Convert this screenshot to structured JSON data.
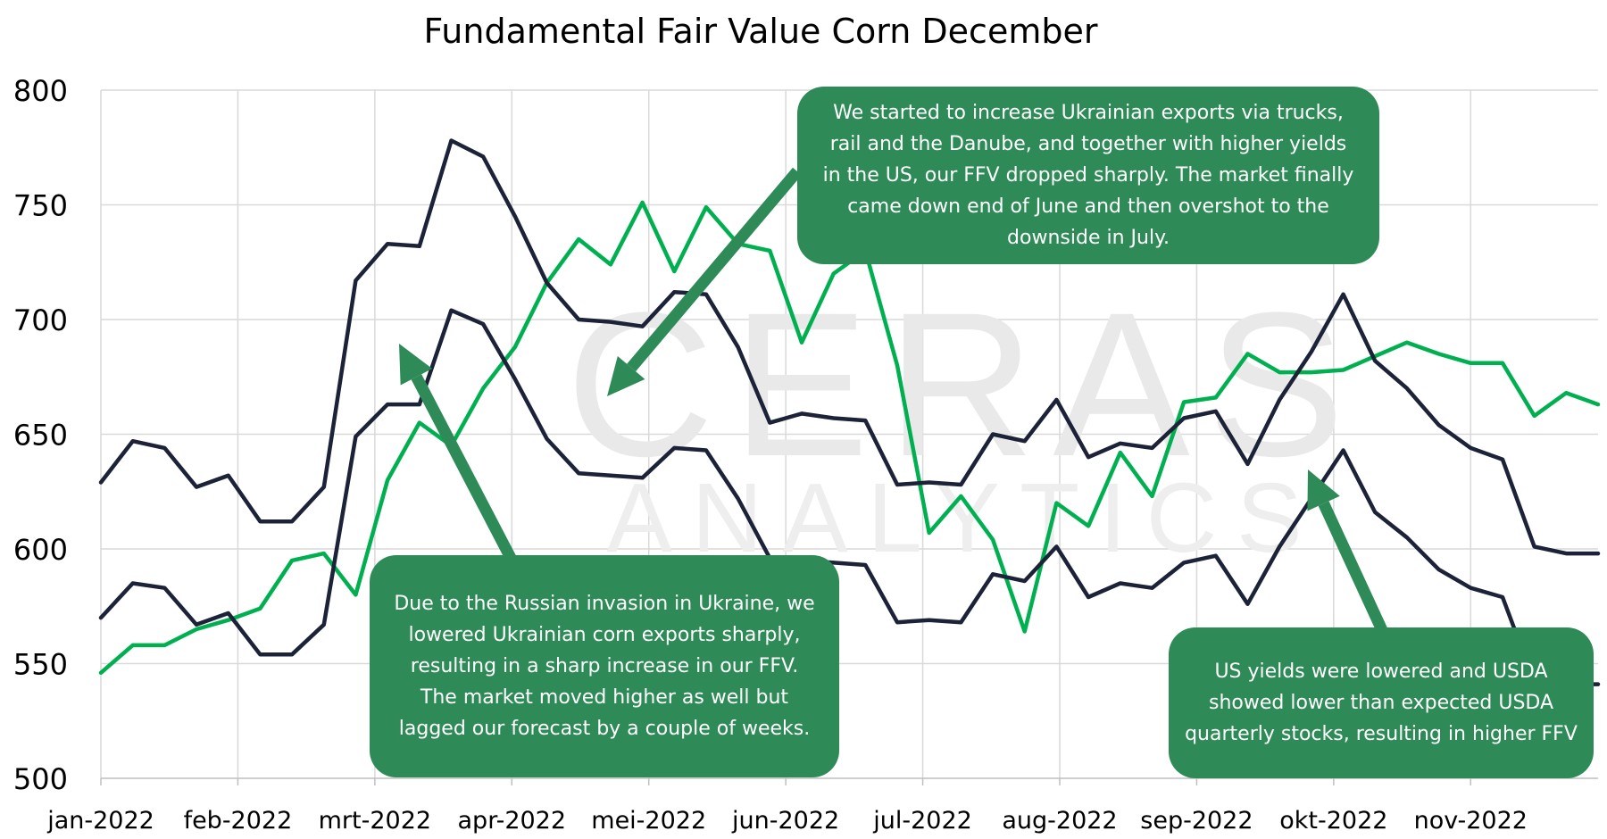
{
  "chart_data": {
    "type": "line",
    "title": "Fundamental Fair Value Corn December",
    "xlabel": "",
    "ylabel": "",
    "ylim": [
      500,
      800
    ],
    "yticks": [
      500,
      550,
      600,
      650,
      700,
      750,
      800
    ],
    "xticks": [
      "jan-2022",
      "feb-2022",
      "mrt-2022",
      "apr-2022",
      "mei-2022",
      "jun-2022",
      "jul-2022",
      "aug-2022",
      "sep-2022",
      "okt-2022",
      "nov-2022"
    ],
    "grid": true,
    "legend": "none",
    "watermark": {
      "line1": "CERAS",
      "line2": "ANALYTICS"
    },
    "series": [
      {
        "color": "#00b050",
        "values": [
          546,
          558,
          558,
          565,
          569,
          574,
          595,
          598,
          580,
          630,
          655,
          645,
          670,
          688,
          716,
          735,
          724,
          751,
          721,
          749,
          733,
          730,
          690,
          720,
          730,
          680,
          607,
          623,
          604,
          564,
          620,
          610,
          642,
          623,
          664,
          666,
          685,
          677,
          677,
          678,
          684,
          690,
          685,
          681,
          681,
          658,
          668,
          663
        ]
      },
      {
        "color": "#1c2237",
        "values": [
          629,
          647,
          644,
          627,
          632,
          612,
          612,
          627,
          717,
          733,
          732,
          778,
          771,
          745,
          716,
          700,
          699,
          697,
          712,
          711,
          688,
          655,
          659,
          657,
          656,
          628,
          629,
          628,
          650,
          647,
          665,
          640,
          646,
          644,
          657,
          660,
          637,
          665,
          686,
          711,
          682,
          670,
          654,
          644,
          639,
          601,
          598,
          598
        ]
      },
      {
        "color": "#1c2237",
        "values": [
          570,
          585,
          583,
          567,
          572,
          554,
          554,
          567,
          649,
          663,
          663,
          704,
          698,
          674,
          648,
          633,
          632,
          631,
          644,
          643,
          622,
          596,
          595,
          594,
          593,
          568,
          569,
          568,
          589,
          586,
          601,
          579,
          585,
          583,
          594,
          597,
          576,
          601,
          622,
          643,
          616,
          605,
          591,
          583,
          579,
          542,
          541,
          541
        ]
      }
    ],
    "annotations": [
      {
        "text": "We started to increase Ukrainian exports via trucks, rail and the Danube, and together with higher yields in the US, our FFV dropped sharply. The market finally came down end of June and then overshot to the downside in July."
      },
      {
        "text": "Due to the Russian invasion in Ukraine, we lowered Ukrainian corn exports sharply, resulting in a sharp increase in our FFV. The market moved higher as well but lagged our forecast by a couple of weeks."
      },
      {
        "text": "US yields were lowered and USDA showed lower than expected USDA quarterly stocks, resulting in higher FFV"
      }
    ]
  }
}
